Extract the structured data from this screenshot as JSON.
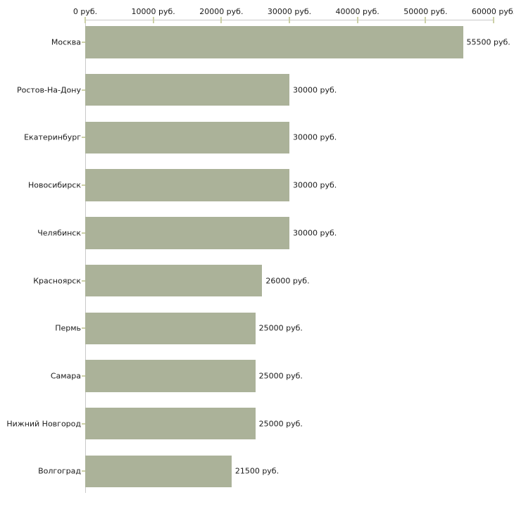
{
  "chart_data": {
    "type": "bar",
    "orientation": "horizontal",
    "title": "",
    "xlabel": "",
    "ylabel": "",
    "unit": "руб.",
    "categories": [
      "Москва",
      "Ростов-На-Дону",
      "Екатеринбург",
      "Новосибирск",
      "Челябинск",
      "Красноярск",
      "Пермь",
      "Самара",
      "Нижний Новгород",
      "Волгоград"
    ],
    "values": [
      55500,
      30000,
      30000,
      30000,
      30000,
      26000,
      25000,
      25000,
      25000,
      21500
    ],
    "value_labels": [
      "55500 руб.",
      "30000 руб.",
      "30000 руб.",
      "30000 руб.",
      "30000 руб.",
      "26000 руб.",
      "25000 руб.",
      "25000 руб.",
      "25000 руб.",
      "21500 руб."
    ],
    "x_axis": {
      "min": 0,
      "max": 60000,
      "tick_step": 10000,
      "ticks": [
        {
          "value": 0,
          "label": "0 руб."
        },
        {
          "value": 10000,
          "label": "10000 руб."
        },
        {
          "value": 20000,
          "label": "20000 руб."
        },
        {
          "value": 30000,
          "label": "30000 руб."
        },
        {
          "value": 40000,
          "label": "40000 руб."
        },
        {
          "value": 50000,
          "label": "50000 руб."
        },
        {
          "value": 60000,
          "label": "60000 руб."
        }
      ]
    },
    "grid": false,
    "legend_position": "none",
    "colors": {
      "bar": "#abb299",
      "tick_mark": "#ccd0a6",
      "axis_line": "#c9c9c9",
      "label_text": "#1a1a1a",
      "background": "#ffffff"
    }
  }
}
